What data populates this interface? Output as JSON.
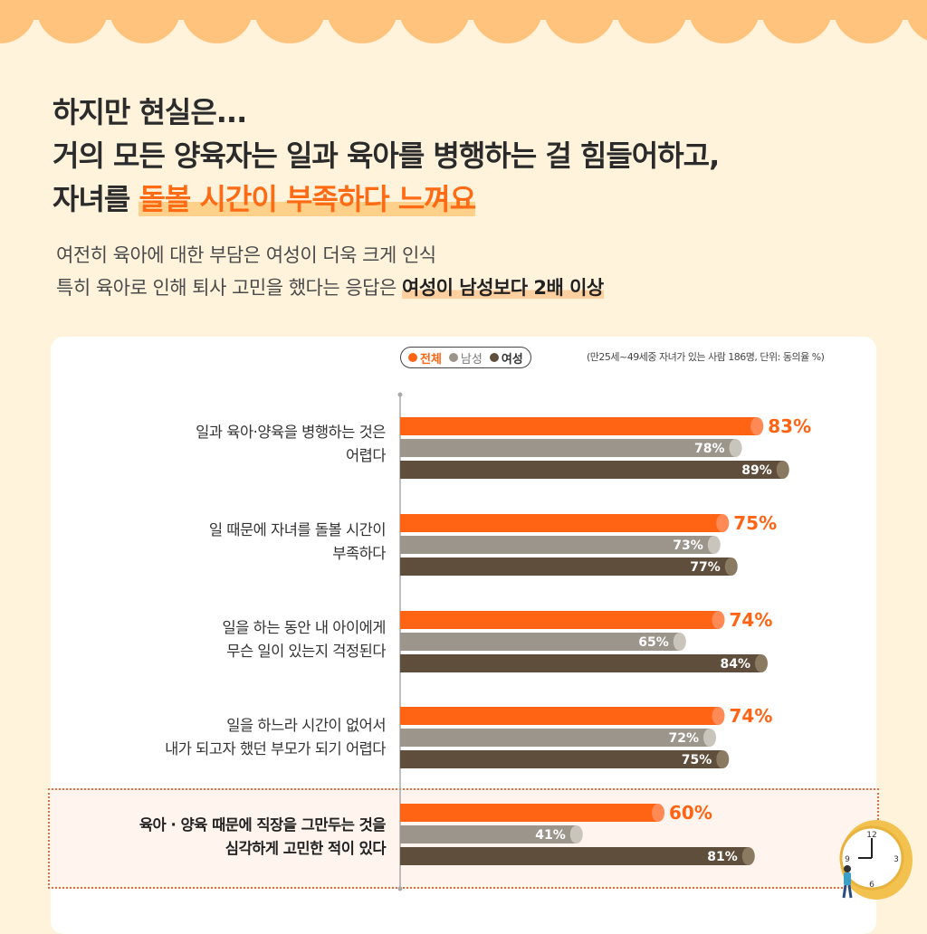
{
  "headline": {
    "line1": "하지만 현실은...",
    "line2": "거의 모든 양육자는 일과 육아를 병행하는 걸 힘들어하고,",
    "line3_prefix": "자녀를 ",
    "line3_highlight": "돌볼 시간이 부족하다 느껴요"
  },
  "subheadline": {
    "line1": "여전히 육아에 대한 부담은 여성이 더욱 크게 인식",
    "line2_prefix": "특히 육아로 인해 퇴사 고민을 했다는 응답은 ",
    "line2_bold": "여성이 남성보다 2배 이상"
  },
  "colors": {
    "total": "#ff6414",
    "male": "#9b958c",
    "female": "#5f4e3b",
    "accent": "#ff6414"
  },
  "chart_data": {
    "type": "bar",
    "orientation": "horizontal",
    "note": "(만25세~49세중 자녀가 있는 사람 186명, 단위: 동의율 %)",
    "categories": [
      {
        "line1": "일과 육아·양육을 병행하는 것은",
        "line2": "어렵다",
        "emphasis": false
      },
      {
        "line1": "일 때문에 자녀를 돌볼 시간이",
        "line2": "부족하다",
        "emphasis": false
      },
      {
        "line1": "일을 하는 동안 내 아이에게",
        "line2": "무슨 일이 있는지 걱정된다",
        "emphasis": false
      },
      {
        "line1": "일을 하느라 시간이 없어서",
        "line2": "내가 되고자 했던 부모가 되기 어렵다",
        "emphasis": false
      },
      {
        "line1": "육아 · 양육 때문에 직장을 그만두는 것을",
        "line2": "심각하게 고민한 적이 있다",
        "emphasis": true
      }
    ],
    "series": [
      {
        "name": "전체",
        "key": "total",
        "values": [
          83,
          75,
          74,
          74,
          60
        ]
      },
      {
        "name": "남성",
        "key": "male",
        "values": [
          78,
          73,
          65,
          72,
          41
        ]
      },
      {
        "name": "여성",
        "key": "female",
        "values": [
          89,
          77,
          84,
          75,
          81
        ]
      }
    ],
    "unit": "%",
    "xlim": [
      0,
      100
    ]
  },
  "clock": {
    "n12": "12",
    "n3": "3",
    "n6": "6",
    "n9": "9"
  }
}
